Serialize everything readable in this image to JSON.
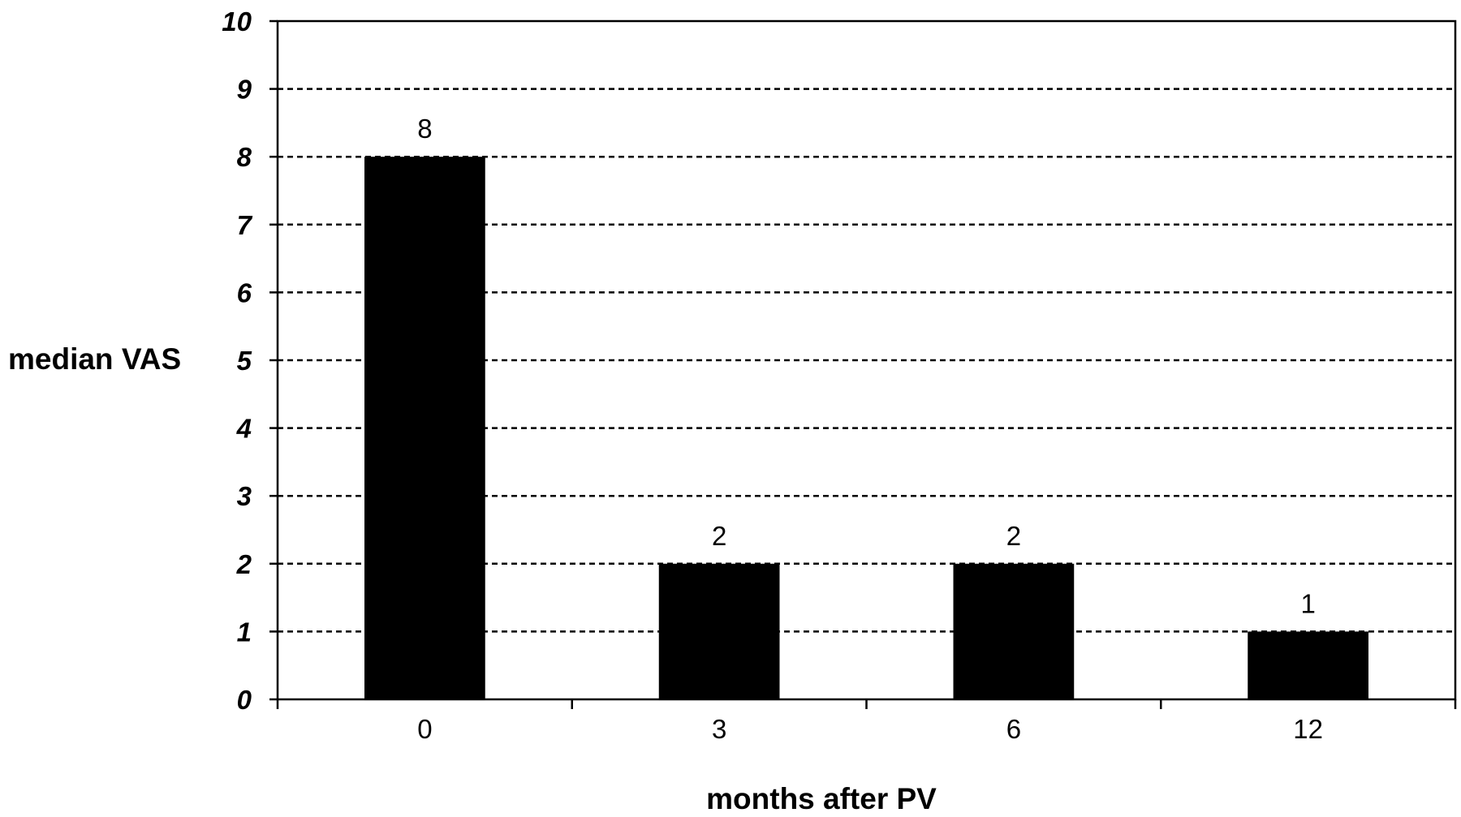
{
  "chart_data": {
    "type": "bar",
    "categories": [
      "0",
      "3",
      "6",
      "12"
    ],
    "values": [
      8,
      2,
      2,
      1
    ],
    "data_labels": [
      "8",
      "2",
      "2",
      "1"
    ],
    "xlabel": "months after PV",
    "ylabel": "median VAS",
    "ylim": [
      0,
      10
    ],
    "yticks": [
      "0",
      "1",
      "2",
      "3",
      "4",
      "5",
      "6",
      "7",
      "8",
      "9",
      "10"
    ],
    "grid": "horizontal dashed",
    "legend": "none",
    "colors": {
      "bar": "#000000",
      "grid": "#000000",
      "axis": "#000000"
    }
  }
}
